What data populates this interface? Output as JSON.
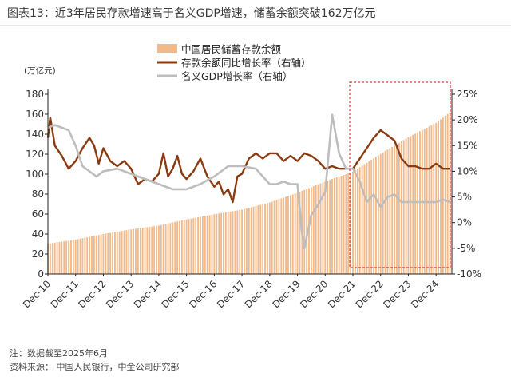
{
  "header": {
    "title": "图表13：近3年居民存款增速高于名义GDP增速，储蓄余额突破162万亿元"
  },
  "footer": {
    "note": "注：数据截至2025年6月",
    "source": "资料来源：   中国人民银行，中金公司研究部"
  },
  "chart_data": {
    "type": "bar",
    "left_unit": "(万亿元)",
    "x_tick_labels": [
      "Dec-10",
      "Dec-11",
      "Dec-12",
      "Dec-13",
      "Dec-14",
      "Dec-15",
      "Dec-16",
      "Dec-17",
      "Dec-18",
      "Dec-19",
      "Dec-20",
      "Dec-21",
      "Dec-22",
      "Dec-23",
      "Dec-24"
    ],
    "y_left": {
      "min": 0,
      "max": 180,
      "ticks": [
        "0",
        "20",
        "40",
        "60",
        "80",
        "100",
        "120",
        "140",
        "160",
        "180"
      ]
    },
    "y_right": {
      "min": -10,
      "max": 25,
      "ticks": [
        "-10%",
        "-5%",
        "0%",
        "5%",
        "10%",
        "15%",
        "20%",
        "25%"
      ]
    },
    "legend": {
      "placement": "top-center",
      "items": [
        {
          "label": "中国居民储蓄存款余额",
          "color": "#f2b98a",
          "kind": "bar"
        },
        {
          "label": "存款余额同比增长率（右轴）",
          "color": "#8b3a0f",
          "kind": "line"
        },
        {
          "label": "名义GDP增长率（右轴）",
          "color": "#bdbdbd",
          "kind": "line"
        }
      ]
    },
    "highlight": {
      "from": "2021-12",
      "to": "2025-06",
      "color": "#e03a3a"
    },
    "series": [
      {
        "name": "中国居民储蓄存款余额",
        "axis": "left",
        "color": "#f2b98a",
        "points": [
          [
            "2010-12",
            30.3
          ],
          [
            "2011-12",
            34.4
          ],
          [
            "2012-12",
            40.0
          ],
          [
            "2013-12",
            44.6
          ],
          [
            "2014-12",
            48.5
          ],
          [
            "2015-12",
            54.6
          ],
          [
            "2016-12",
            59.8
          ],
          [
            "2017-12",
            64.4
          ],
          [
            "2018-12",
            71.6
          ],
          [
            "2019-12",
            81.3
          ],
          [
            "2020-12",
            92.6
          ],
          [
            "2021-12",
            102.5
          ],
          [
            "2022-12",
            120.3
          ],
          [
            "2023-12",
            136.9
          ],
          [
            "2024-12",
            151.3
          ],
          [
            "2025-06",
            162.0
          ]
        ]
      },
      {
        "name": "存款余额同比增长率（右轴）",
        "axis": "right",
        "color": "#8b3a0f",
        "points": [
          [
            "2010-12",
            16.5
          ],
          [
            "2011-01",
            20.5
          ],
          [
            "2011-03",
            15.0
          ],
          [
            "2011-06",
            13.0
          ],
          [
            "2011-09",
            10.5
          ],
          [
            "2011-12",
            12.0
          ],
          [
            "2012-03",
            14.5
          ],
          [
            "2012-06",
            16.5
          ],
          [
            "2012-08",
            15.0
          ],
          [
            "2012-10",
            11.5
          ],
          [
            "2012-12",
            14.5
          ],
          [
            "2013-03",
            12.0
          ],
          [
            "2013-06",
            11.0
          ],
          [
            "2013-09",
            12.0
          ],
          [
            "2013-12",
            10.5
          ],
          [
            "2014-03",
            7.5
          ],
          [
            "2014-06",
            8.5
          ],
          [
            "2014-09",
            8.0
          ],
          [
            "2014-12",
            9.5
          ],
          [
            "2015-02",
            13.5
          ],
          [
            "2015-04",
            9.0
          ],
          [
            "2015-06",
            10.5
          ],
          [
            "2015-08",
            13.0
          ],
          [
            "2015-10",
            9.5
          ],
          [
            "2015-12",
            8.5
          ],
          [
            "2016-03",
            10.0
          ],
          [
            "2016-06",
            12.5
          ],
          [
            "2016-09",
            9.0
          ],
          [
            "2016-12",
            7.0
          ],
          [
            "2017-02",
            8.0
          ],
          [
            "2017-04",
            5.5
          ],
          [
            "2017-06",
            6.5
          ],
          [
            "2017-08",
            4.0
          ],
          [
            "2017-10",
            9.0
          ],
          [
            "2017-12",
            9.5
          ],
          [
            "2018-03",
            12.5
          ],
          [
            "2018-06",
            13.5
          ],
          [
            "2018-09",
            12.5
          ],
          [
            "2018-12",
            13.5
          ],
          [
            "2019-03",
            13.5
          ],
          [
            "2019-06",
            12.0
          ],
          [
            "2019-09",
            13.0
          ],
          [
            "2019-12",
            12.0
          ],
          [
            "2020-03",
            13.5
          ],
          [
            "2020-06",
            13.0
          ],
          [
            "2020-09",
            12.0
          ],
          [
            "2020-12",
            10.5
          ],
          [
            "2021-03",
            11.0
          ],
          [
            "2021-06",
            10.5
          ],
          [
            "2021-09",
            10.5
          ],
          [
            "2021-12",
            10.5
          ],
          [
            "2022-03",
            12.5
          ],
          [
            "2022-06",
            14.5
          ],
          [
            "2022-09",
            16.5
          ],
          [
            "2022-12",
            18.0
          ],
          [
            "2023-03",
            17.0
          ],
          [
            "2023-06",
            16.0
          ],
          [
            "2023-09",
            12.5
          ],
          [
            "2023-12",
            11.0
          ],
          [
            "2024-03",
            11.0
          ],
          [
            "2024-06",
            10.5
          ],
          [
            "2024-09",
            10.5
          ],
          [
            "2024-12",
            11.5
          ],
          [
            "2025-03",
            10.5
          ],
          [
            "2025-06",
            10.5
          ]
        ]
      },
      {
        "name": "名义GDP增长率（右轴）",
        "axis": "right",
        "color": "#bdbdbd",
        "points": [
          [
            "2010-12",
            18.5
          ],
          [
            "2011-03",
            19.0
          ],
          [
            "2011-09",
            18.0
          ],
          [
            "2011-12",
            15.0
          ],
          [
            "2012-03",
            11.0
          ],
          [
            "2012-09",
            9.0
          ],
          [
            "2012-12",
            10.0
          ],
          [
            "2013-06",
            10.5
          ],
          [
            "2013-12",
            9.5
          ],
          [
            "2014-06",
            8.5
          ],
          [
            "2014-12",
            7.5
          ],
          [
            "2015-06",
            6.5
          ],
          [
            "2015-12",
            6.5
          ],
          [
            "2016-06",
            7.5
          ],
          [
            "2016-12",
            9.0
          ],
          [
            "2017-06",
            11.0
          ],
          [
            "2017-12",
            11.0
          ],
          [
            "2018-06",
            10.5
          ],
          [
            "2018-12",
            7.5
          ],
          [
            "2019-03",
            7.5
          ],
          [
            "2019-06",
            8.0
          ],
          [
            "2019-09",
            7.5
          ],
          [
            "2019-12",
            7.5
          ],
          [
            "2020-02",
            -2.0
          ],
          [
            "2020-03",
            -5.0
          ],
          [
            "2020-06",
            1.5
          ],
          [
            "2020-09",
            3.5
          ],
          [
            "2020-12",
            6.0
          ],
          [
            "2021-03",
            21.0
          ],
          [
            "2021-06",
            13.5
          ],
          [
            "2021-09",
            10.5
          ],
          [
            "2021-12",
            10.5
          ],
          [
            "2022-03",
            8.0
          ],
          [
            "2022-06",
            4.0
          ],
          [
            "2022-09",
            5.5
          ],
          [
            "2022-12",
            3.0
          ],
          [
            "2023-03",
            5.0
          ],
          [
            "2023-06",
            5.5
          ],
          [
            "2023-09",
            4.0
          ],
          [
            "2023-12",
            4.0
          ],
          [
            "2024-06",
            4.0
          ],
          [
            "2024-12",
            4.0
          ],
          [
            "2025-03",
            4.5
          ],
          [
            "2025-06",
            4.0
          ]
        ]
      }
    ]
  }
}
